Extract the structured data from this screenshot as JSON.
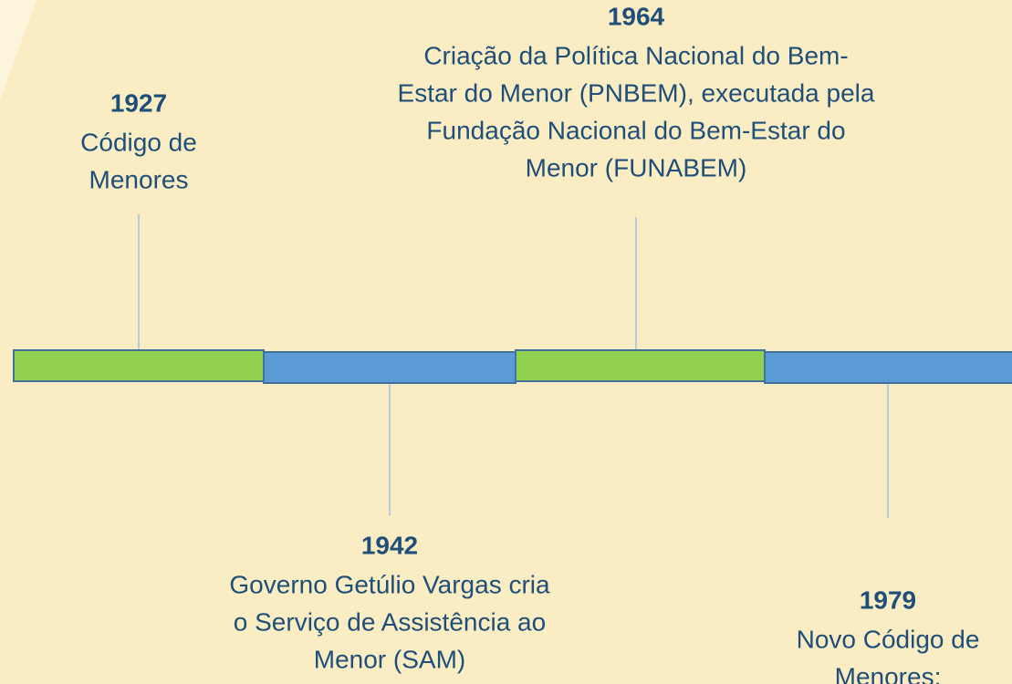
{
  "events": [
    {
      "year": "1927",
      "lines": [
        "Código de",
        "Menores"
      ]
    },
    {
      "year": "1942",
      "lines": [
        "Governo Getúlio Vargas cria",
        "o Serviço de Assistência ao",
        "Menor (SAM)"
      ]
    },
    {
      "year": "1964",
      "lines": [
        "Criação da Política Nacional do Bem-",
        "Estar do Menor (PNBEM), executada pela",
        "Fundação Nacional do Bem-Estar do",
        "Menor (FUNABEM)"
      ]
    },
    {
      "year": "1979",
      "lines": [
        "Novo Código de",
        "Menores;"
      ]
    }
  ]
}
